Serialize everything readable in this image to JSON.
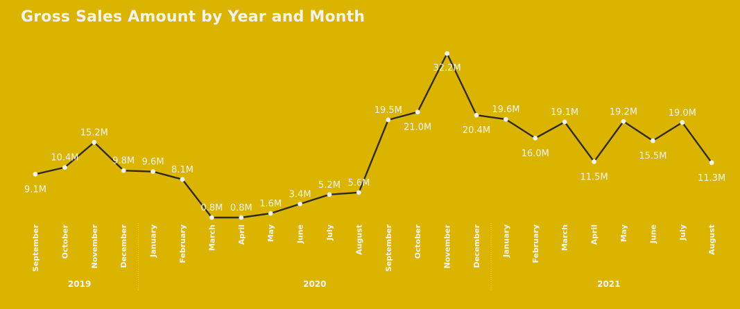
{
  "title": "Gross Sales Amount by Year and Month",
  "colors": {
    "background": "#dbb400",
    "line": "#2e2b1e",
    "marker": "#f2f2f2",
    "text": "#f4f4f4"
  },
  "chart_data": {
    "type": "line",
    "title": "Gross Sales Amount by Year and Month",
    "xlabel": "",
    "ylabel": "",
    "unit": "M",
    "grid": false,
    "legend": "none",
    "years": [
      {
        "label": "2019",
        "months": [
          "September",
          "October",
          "November",
          "December"
        ]
      },
      {
        "label": "2020",
        "months": [
          "January",
          "February",
          "March",
          "April",
          "May",
          "June",
          "July",
          "August",
          "September",
          "October",
          "November",
          "December"
        ]
      },
      {
        "label": "2021",
        "months": [
          "January",
          "February",
          "March",
          "April",
          "May",
          "June",
          "July",
          "August"
        ]
      }
    ],
    "values": [
      9.1,
      10.4,
      15.2,
      9.8,
      9.6,
      8.1,
      0.8,
      0.8,
      1.6,
      3.4,
      5.2,
      5.6,
      19.5,
      21.0,
      32.2,
      20.4,
      19.6,
      16.0,
      19.1,
      11.5,
      19.2,
      15.5,
      19.0,
      11.3
    ],
    "data_labels": [
      "9.1M",
      "10.4M",
      "15.2M",
      "9.8M",
      "9.6M",
      "8.1M",
      "0.8M",
      "0.8M",
      "1.6M",
      "3.4M",
      "5.2M",
      "5.6M",
      "19.5M",
      "21.0M",
      "32.2M",
      "20.4M",
      "19.6M",
      "16.0M",
      "19.1M",
      "11.5M",
      "19.2M",
      "15.5M",
      "19.0M",
      "11.3M"
    ]
  }
}
